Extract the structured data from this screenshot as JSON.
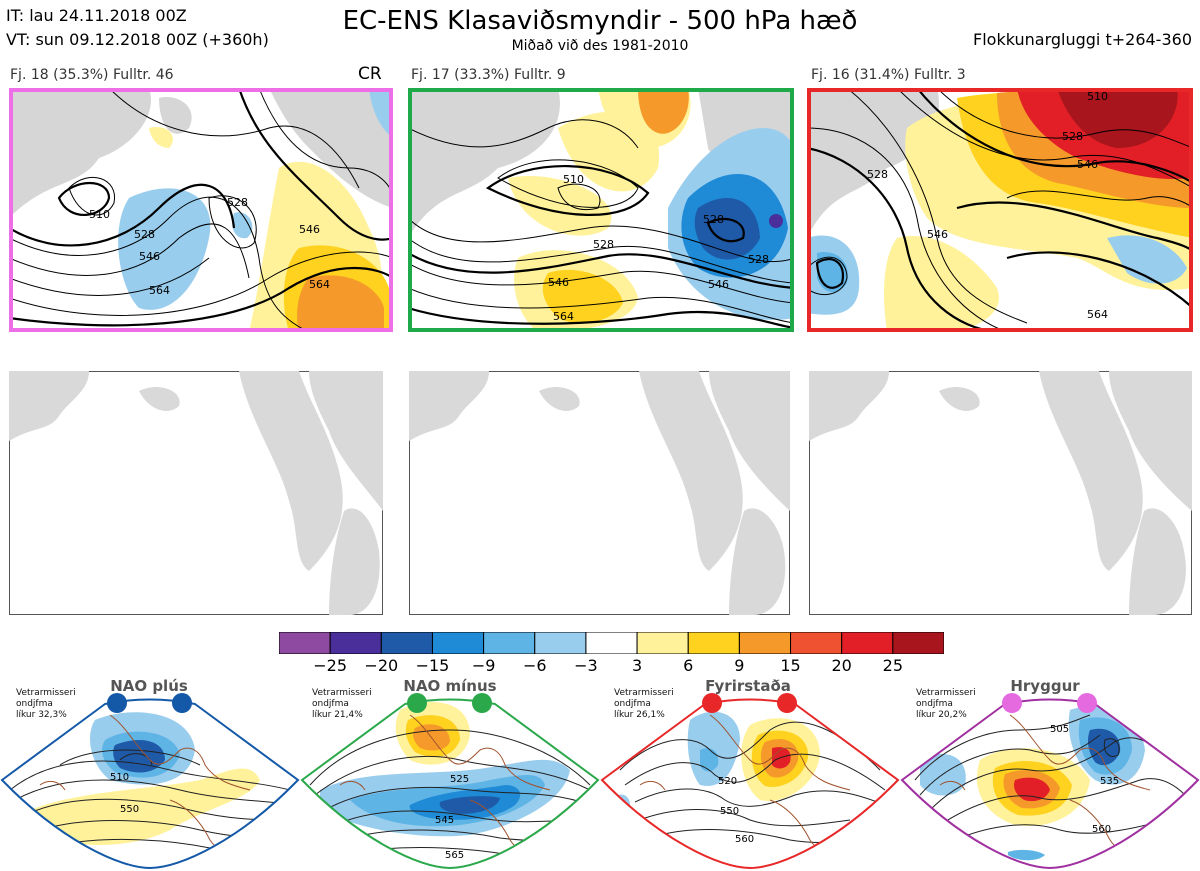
{
  "header": {
    "it_line": "IT: lau 24.11.2018 00Z",
    "vt_line": "VT: sun 09.12.2018 00Z  (+360h)",
    "title": "EC-ENS Klasaviðsmyndir - 500 hPa hæð",
    "subtitle": "Miðað við des 1981-2010",
    "window": "Flokkunargluggi t+264-360"
  },
  "cr_label": "CR",
  "clusters": [
    {
      "label": "Fj. 18 (35.3%)   Fulltr. 46",
      "border_color": "#ee6ee8",
      "contours": [
        "510",
        "528",
        "528",
        "546",
        "564",
        "546",
        "564"
      ]
    },
    {
      "label": "Fj. 17 (33.3%)   Fulltr. 9",
      "border_color": "#1faa4a",
      "contours": [
        "510",
        "528",
        "528",
        "546",
        "564",
        "546",
        "528"
      ]
    },
    {
      "label": "Fj. 16 (31.4%)   Fulltr. 3",
      "border_color": "#e82828",
      "contours": [
        "510",
        "528",
        "546",
        "528",
        "546",
        "564"
      ]
    }
  ],
  "colorbar": {
    "colors": [
      "#8e4aa0",
      "#4a2f9b",
      "#1f5aa8",
      "#1f8ad6",
      "#5fb4e6",
      "#99cdee",
      "#ffffff",
      "#fff29a",
      "#ffd21f",
      "#f59a2a",
      "#ee5230",
      "#e21f26",
      "#a8151c"
    ],
    "ticks": [
      "−25",
      "−20",
      "−15",
      "−9",
      "−6",
      "−3",
      "3",
      "6",
      "9",
      "15",
      "20",
      "25"
    ]
  },
  "regimes": [
    {
      "name": "NAO plús",
      "note": [
        "Vetrarmisseri",
        "ondjfma",
        "líkur 32,3%"
      ],
      "color": "#1359a8",
      "contours": [
        "510",
        "550"
      ]
    },
    {
      "name": "NAO mínus",
      "note": [
        "Vetrarmisseri",
        "ondjfma",
        "líkur 21,4%"
      ],
      "color": "#2aa84a",
      "contours": [
        "525",
        "545",
        "565"
      ]
    },
    {
      "name": "Fyrirstaða",
      "note": [
        "Vetrarmisseri",
        "ondjfma",
        "líkur 26,1%"
      ],
      "color": "#e82828",
      "contours": [
        "520",
        "550",
        "560"
      ]
    },
    {
      "name": "Hryggur",
      "note": [
        "Vetrarmisseri",
        "ondjfma",
        "líkur 20,2%"
      ],
      "color": "#e56ae0",
      "contours": [
        "505",
        "535",
        "560"
      ]
    }
  ]
}
